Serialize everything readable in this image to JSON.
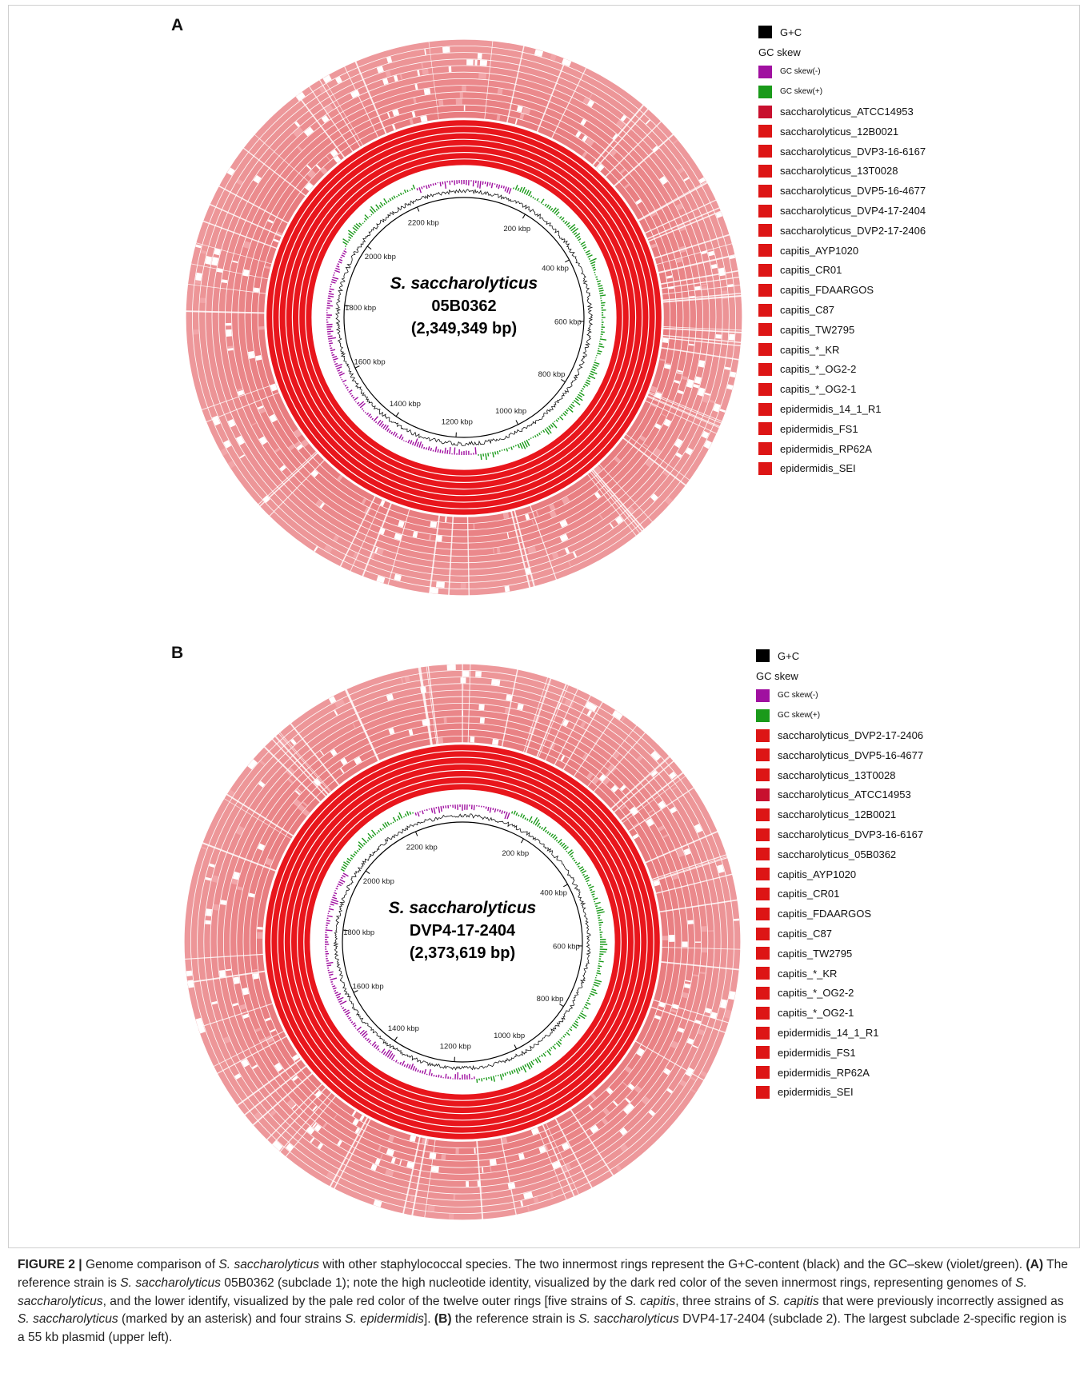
{
  "panels": [
    {
      "letter": "A",
      "center": {
        "name": "S. saccharolyticus",
        "strain": "05B0362",
        "size": "(2,349,349 bp)"
      },
      "ticks": [
        "200 kbp",
        "400 kbp",
        "600 kbp",
        "800 kbp",
        "1000 kbp",
        "1200 kbp",
        "1400 kbp",
        "1600 kbp",
        "1800 kbp",
        "2000 kbp",
        "2200 kbp"
      ],
      "legend": [
        {
          "label": "G+C",
          "color": "#000000",
          "style": "normal"
        },
        {
          "label": "GC skew",
          "color": "",
          "style": "head"
        },
        {
          "label": "GC skew(-)",
          "color": "#a010a0",
          "style": "small"
        },
        {
          "label": "GC skew(+)",
          "color": "#1a9a1a",
          "style": "small"
        },
        {
          "label": "saccharolyticus_ATCC14953",
          "color": "#c8102e",
          "style": "normal"
        },
        {
          "label": "saccharolyticus_12B0021",
          "color": "#dd1515",
          "style": "normal"
        },
        {
          "label": "saccharolyticus_DVP3-16-6167",
          "color": "#dd1515",
          "style": "normal"
        },
        {
          "label": "saccharolyticus_13T0028",
          "color": "#dd1515",
          "style": "normal"
        },
        {
          "label": "saccharolyticus_DVP5-16-4677",
          "color": "#dd1515",
          "style": "normal"
        },
        {
          "label": "saccharolyticus_DVP4-17-2404",
          "color": "#dd1515",
          "style": "normal"
        },
        {
          "label": "saccharolyticus_DVP2-17-2406",
          "color": "#dd1515",
          "style": "normal"
        },
        {
          "label": "capitis_AYP1020",
          "color": "#dd1515",
          "style": "normal"
        },
        {
          "label": "capitis_CR01",
          "color": "#dd1515",
          "style": "normal"
        },
        {
          "label": "capitis_FDAARGOS",
          "color": "#dd1515",
          "style": "normal"
        },
        {
          "label": "capitis_C87",
          "color": "#dd1515",
          "style": "normal"
        },
        {
          "label": "capitis_TW2795",
          "color": "#dd1515",
          "style": "normal"
        },
        {
          "label": "capitis_*_KR",
          "color": "#dd1515",
          "style": "normal"
        },
        {
          "label": "capitis_*_OG2-2",
          "color": "#dd1515",
          "style": "normal"
        },
        {
          "label": "capitis_*_OG2-1",
          "color": "#dd1515",
          "style": "normal"
        },
        {
          "label": "epidermidis_14_1_R1",
          "color": "#dd1515",
          "style": "normal"
        },
        {
          "label": "epidermidis_FS1",
          "color": "#dd1515",
          "style": "normal"
        },
        {
          "label": "epidermidis_RP62A",
          "color": "#dd1515",
          "style": "normal"
        },
        {
          "label": "epidermidis_SEI",
          "color": "#dd1515",
          "style": "normal"
        }
      ]
    },
    {
      "letter": "B",
      "center": {
        "name": "S. saccharolyticus",
        "strain": "DVP4-17-2404",
        "size": "(2,373,619 bp)"
      },
      "ticks": [
        "200 kbp",
        "400 kbp",
        "600 kbp",
        "800 kbp",
        "1000 kbp",
        "1200 kbp",
        "1400 kbp",
        "1600 kbp",
        "1800 kbp",
        "2000 kbp",
        "2200 kbp"
      ],
      "legend": [
        {
          "label": "G+C",
          "color": "#000000",
          "style": "normal"
        },
        {
          "label": "GC skew",
          "color": "",
          "style": "head"
        },
        {
          "label": "GC skew(-)",
          "color": "#a010a0",
          "style": "small"
        },
        {
          "label": "GC skew(+)",
          "color": "#1a9a1a",
          "style": "small"
        },
        {
          "label": "saccharolyticus_DVP2-17-2406",
          "color": "#dd1515",
          "style": "normal"
        },
        {
          "label": "saccharolyticus_DVP5-16-4677",
          "color": "#dd1515",
          "style": "normal"
        },
        {
          "label": "saccharolyticus_13T0028",
          "color": "#dd1515",
          "style": "normal"
        },
        {
          "label": "saccharolyticus_ATCC14953",
          "color": "#c8102e",
          "style": "normal"
        },
        {
          "label": "saccharolyticus_12B0021",
          "color": "#dd1515",
          "style": "normal"
        },
        {
          "label": "saccharolyticus_DVP3-16-6167",
          "color": "#dd1515",
          "style": "normal"
        },
        {
          "label": "saccharolyticus_05B0362",
          "color": "#dd1515",
          "style": "normal"
        },
        {
          "label": "capitis_AYP1020",
          "color": "#dd1515",
          "style": "normal"
        },
        {
          "label": "capitis_CR01",
          "color": "#dd1515",
          "style": "normal"
        },
        {
          "label": "capitis_FDAARGOS",
          "color": "#dd1515",
          "style": "normal"
        },
        {
          "label": "capitis_C87",
          "color": "#dd1515",
          "style": "normal"
        },
        {
          "label": "capitis_TW2795",
          "color": "#dd1515",
          "style": "normal"
        },
        {
          "label": "capitis_*_KR",
          "color": "#dd1515",
          "style": "normal"
        },
        {
          "label": "capitis_*_OG2-2",
          "color": "#dd1515",
          "style": "normal"
        },
        {
          "label": "capitis_*_OG2-1",
          "color": "#dd1515",
          "style": "normal"
        },
        {
          "label": "epidermidis_14_1_R1",
          "color": "#dd1515",
          "style": "normal"
        },
        {
          "label": "epidermidis_FS1",
          "color": "#dd1515",
          "style": "normal"
        },
        {
          "label": "epidermidis_RP62A",
          "color": "#dd1515",
          "style": "normal"
        },
        {
          "label": "epidermidis_SEI",
          "color": "#dd1515",
          "style": "normal"
        }
      ]
    }
  ],
  "colors": {
    "inner_rings": "#e8161c",
    "outer_rings": "#e2585c",
    "outer_pale": "#f2a5a8",
    "gc_content": "#111111",
    "gc_skew_neg": "#a010a0",
    "gc_skew_pos": "#1a9a1a"
  },
  "caption": {
    "figure_label": "FIGURE 2 |",
    "p1": " Genome comparison of ",
    "i1": "S. saccharolyticus",
    "p2": " with other staphylococcal species. The two innermost rings represent the G+C-content (black) and the GC–skew (violet/green). ",
    "b1": "(A)",
    "p3": " The reference strain is ",
    "i2": "S. saccharolyticus",
    "p4": " 05B0362 (subclade 1); note the high nucleotide identity, visualized by the dark red color of the seven innermost rings, representing genomes of ",
    "i3": "S. saccharolyticus",
    "p5": ", and the lower identify, visualized by the pale red color of the twelve outer rings [five strains of ",
    "i4": "S. capitis",
    "p6": ", three strains of ",
    "i5": "S. capitis",
    "p7": " that were previously incorrectly assigned as ",
    "i6": "S. saccharolyticus",
    "p8": " (marked by an asterisk) and four strains ",
    "i7": "S. epidermidis",
    "p9": "]. ",
    "b2": "(B)",
    "p10": " the reference strain is ",
    "i8": "S. saccharolyticus",
    "p11": " DVP4-17-2404 (subclade 2). The largest subclade 2-specific region is a 55 kb plasmid (upper left)."
  }
}
